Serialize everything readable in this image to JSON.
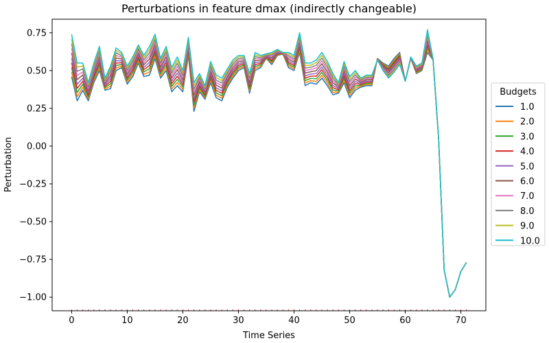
{
  "chart_data": {
    "type": "line",
    "title": "Perturbations in feature dmax (indirectly changeable)",
    "xlabel": "Time Series",
    "ylabel": "Perturbation",
    "xlim": [
      -3.5,
      74.5
    ],
    "ylim": [
      -1.09,
      0.84
    ],
    "xticks": [
      0,
      10,
      20,
      30,
      40,
      50,
      60,
      70
    ],
    "yticks": [
      0.75,
      0.5,
      0.25,
      0.0,
      -0.25,
      -0.5,
      -0.75,
      -1.0
    ],
    "ytick_labels": [
      "0.75",
      "0.50",
      "0.25",
      "0.00",
      "−0.25",
      "−0.50",
      "−0.75",
      "−1.00"
    ],
    "grid": false,
    "legend": {
      "title": "Budgets",
      "placement": "center right outside"
    },
    "x": [
      0,
      1,
      2,
      3,
      4,
      5,
      6,
      7,
      8,
      9,
      10,
      11,
      12,
      13,
      14,
      15,
      16,
      17,
      18,
      19,
      20,
      21,
      22,
      23,
      24,
      25,
      26,
      27,
      28,
      29,
      30,
      31,
      32,
      33,
      34,
      35,
      36,
      37,
      38,
      39,
      40,
      41,
      42,
      43,
      44,
      45,
      46,
      47,
      48,
      49,
      50,
      51,
      52,
      53,
      54,
      55,
      56,
      57,
      58,
      59,
      60,
      61,
      62,
      63,
      64,
      65,
      66,
      67,
      68,
      69,
      70,
      71
    ],
    "base_series": [
      0.46,
      0.3,
      0.37,
      0.3,
      0.42,
      0.5,
      0.37,
      0.38,
      0.5,
      0.52,
      0.41,
      0.46,
      0.55,
      0.46,
      0.47,
      0.58,
      0.45,
      0.5,
      0.36,
      0.4,
      0.36,
      0.6,
      0.23,
      0.36,
      0.31,
      0.42,
      0.32,
      0.3,
      0.39,
      0.45,
      0.5,
      0.52,
      0.35,
      0.5,
      0.52,
      0.58,
      0.54,
      0.6,
      0.61,
      0.52,
      0.5,
      0.62,
      0.4,
      0.42,
      0.41,
      0.45,
      0.4,
      0.34,
      0.35,
      0.42,
      0.32,
      0.37,
      0.39,
      0.4,
      0.4,
      0.58,
      0.55,
      0.53,
      0.58,
      0.62,
      0.43,
      0.58,
      0.48,
      0.5,
      0.62,
      0.57,
      0.05,
      -0.82,
      -1.0,
      -0.95,
      -0.83,
      -0.77
    ],
    "top_series": [
      0.74,
      0.55,
      0.55,
      0.42,
      0.55,
      0.66,
      0.45,
      0.53,
      0.65,
      0.62,
      0.53,
      0.59,
      0.67,
      0.6,
      0.66,
      0.74,
      0.58,
      0.66,
      0.52,
      0.59,
      0.5,
      0.72,
      0.42,
      0.48,
      0.4,
      0.56,
      0.47,
      0.45,
      0.51,
      0.57,
      0.6,
      0.6,
      0.48,
      0.62,
      0.6,
      0.61,
      0.62,
      0.64,
      0.62,
      0.62,
      0.6,
      0.75,
      0.55,
      0.55,
      0.57,
      0.62,
      0.56,
      0.48,
      0.42,
      0.56,
      0.46,
      0.5,
      0.45,
      0.47,
      0.47,
      0.57,
      0.5,
      0.45,
      0.49,
      0.54,
      0.43,
      0.59,
      0.53,
      0.55,
      0.77,
      0.58,
      0.05,
      -0.82,
      -1.0,
      -0.95,
      -0.83,
      -0.77
    ],
    "series": [
      {
        "name": "1.0",
        "color": "#1f77b4",
        "mix": 0.0
      },
      {
        "name": "2.0",
        "color": "#ff7f0e",
        "mix": 0.11
      },
      {
        "name": "3.0",
        "color": "#2ca02c",
        "mix": 0.22
      },
      {
        "name": "4.0",
        "color": "#d62728",
        "mix": 0.33
      },
      {
        "name": "5.0",
        "color": "#9467bd",
        "mix": 0.44
      },
      {
        "name": "6.0",
        "color": "#8c564b",
        "mix": 0.56
      },
      {
        "name": "7.0",
        "color": "#e377c2",
        "mix": 0.67
      },
      {
        "name": "8.0",
        "color": "#7f7f7f",
        "mix": 0.78
      },
      {
        "name": "9.0",
        "color": "#bcbd22",
        "mix": 0.89
      },
      {
        "name": "10.0",
        "color": "#17becf",
        "mix": 1.0
      }
    ]
  }
}
